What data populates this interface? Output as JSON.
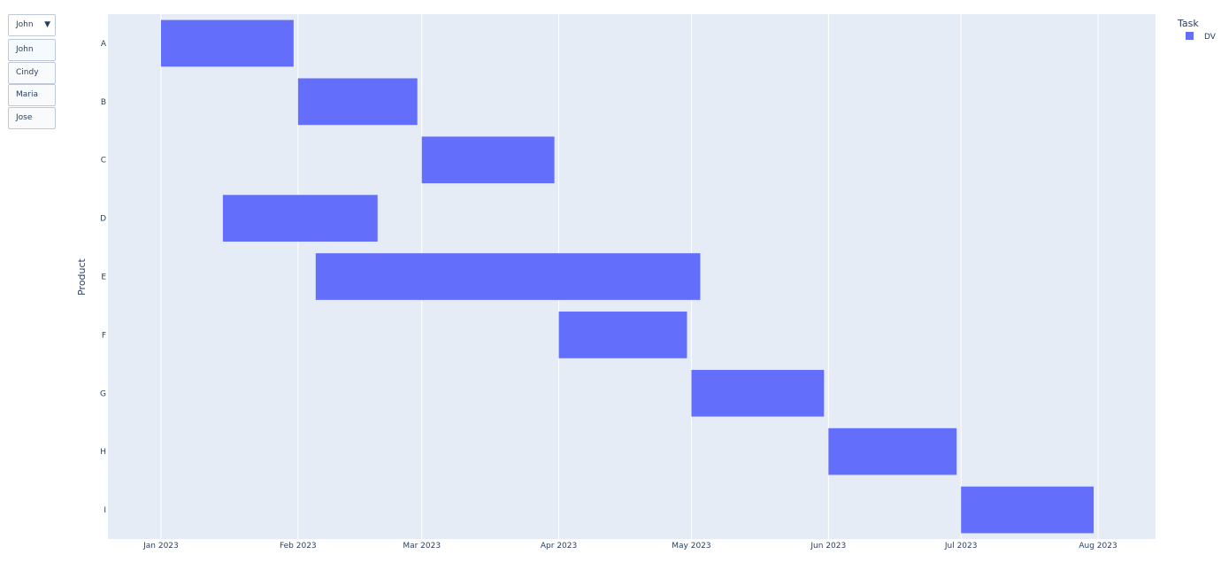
{
  "dropdown": {
    "selected": "John",
    "options": [
      "John",
      "Cindy",
      "Maria",
      "Jose"
    ],
    "arrow_icon": "triangle-down-icon"
  },
  "colors": {
    "plot_bg": "#e5ecf6",
    "bar": "#636efa",
    "grid": "#ffffff"
  },
  "chart_data": {
    "type": "bar",
    "orientation": "horizontal-timeline",
    "ylabel": "Product",
    "xlabel": "",
    "categories": [
      "A",
      "B",
      "C",
      "D",
      "E",
      "F",
      "G",
      "H",
      "I"
    ],
    "xlim": [
      "2022-12-20",
      "2023-08-14"
    ],
    "x_ticks": [
      {
        "date": "2023-01-01",
        "label": "Jan 2023"
      },
      {
        "date": "2023-02-01",
        "label": "Feb 2023"
      },
      {
        "date": "2023-03-01",
        "label": "Mar 2023"
      },
      {
        "date": "2023-04-01",
        "label": "Apr 2023"
      },
      {
        "date": "2023-05-01",
        "label": "May 2023"
      },
      {
        "date": "2023-06-01",
        "label": "Jun 2023"
      },
      {
        "date": "2023-07-01",
        "label": "Jul 2023"
      },
      {
        "date": "2023-08-01",
        "label": "Aug 2023"
      }
    ],
    "legend": {
      "title": "Task",
      "position": "top-right"
    },
    "grid": {
      "x": true,
      "y": false
    },
    "series": [
      {
        "name": "DV",
        "tasks": [
          {
            "product": "A",
            "start": "2023-01-01",
            "end": "2023-01-31"
          },
          {
            "product": "B",
            "start": "2023-02-01",
            "end": "2023-02-28"
          },
          {
            "product": "C",
            "start": "2023-03-01",
            "end": "2023-03-31"
          },
          {
            "product": "D",
            "start": "2023-01-15",
            "end": "2023-02-19"
          },
          {
            "product": "E",
            "start": "2023-02-05",
            "end": "2023-05-03"
          },
          {
            "product": "F",
            "start": "2023-04-01",
            "end": "2023-04-30"
          },
          {
            "product": "G",
            "start": "2023-05-01",
            "end": "2023-05-31"
          },
          {
            "product": "H",
            "start": "2023-06-01",
            "end": "2023-06-30"
          },
          {
            "product": "I",
            "start": "2023-07-01",
            "end": "2023-07-31"
          }
        ]
      }
    ]
  }
}
